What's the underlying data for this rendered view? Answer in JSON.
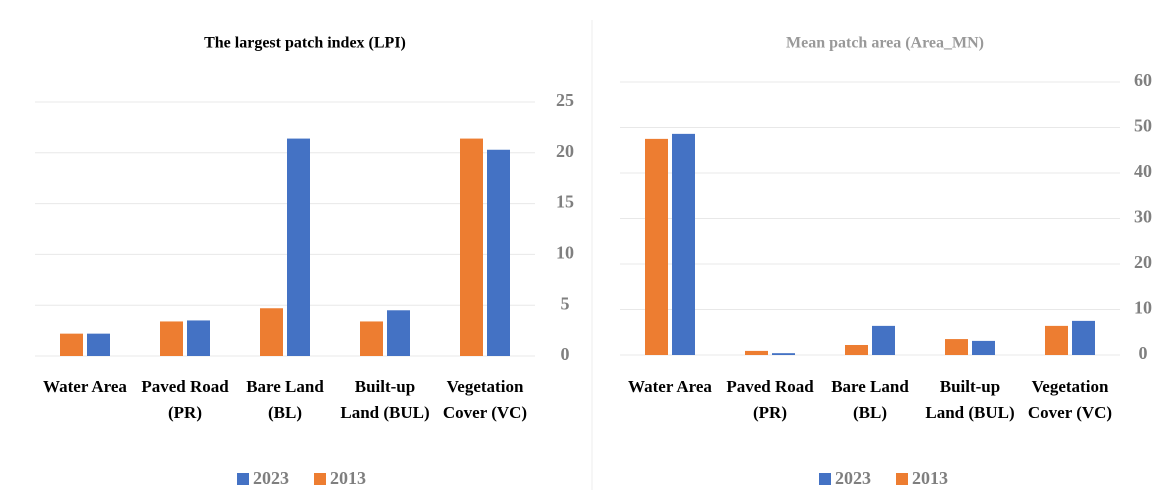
{
  "chart_data": [
    {
      "type": "bar",
      "title": "The largest patch index (LPI)",
      "title_color": "#000000",
      "categories": [
        "Water Area",
        "Paved Road (PR)",
        "Bare Land (BL)",
        "Built-up Land (BUL)",
        "Vegetation Cover (VC)"
      ],
      "series": [
        {
          "name": "2023",
          "color": "#4472c4",
          "values": [
            2.2,
            3.5,
            21.4,
            4.5,
            20.3
          ]
        },
        {
          "name": "2013",
          "color": "#ed7d31",
          "values": [
            2.2,
            3.4,
            4.7,
            3.4,
            21.4
          ]
        }
      ],
      "ylim": [
        0,
        25
      ],
      "yticks": [
        0,
        5,
        10,
        15,
        20,
        25
      ],
      "grid": true,
      "legend": "bottom"
    },
    {
      "type": "bar",
      "title": "Mean patch area (Area_MN)",
      "title_color": "#999999",
      "categories": [
        "Water Area",
        "Paved Road (PR)",
        "Bare Land (BL)",
        "Built-up Land (BUL)",
        "Vegetation Cover (VC)"
      ],
      "series": [
        {
          "name": "2023",
          "color": "#4472c4",
          "values": [
            48.6,
            0.4,
            6.4,
            3.1,
            7.5
          ]
        },
        {
          "name": "2013",
          "color": "#ed7d31",
          "values": [
            47.5,
            0.9,
            2.2,
            3.5,
            6.4
          ]
        }
      ],
      "ylim": [
        0,
        60
      ],
      "yticks": [
        0,
        10,
        20,
        30,
        40,
        50,
        60
      ],
      "grid": true,
      "legend": "bottom"
    }
  ]
}
